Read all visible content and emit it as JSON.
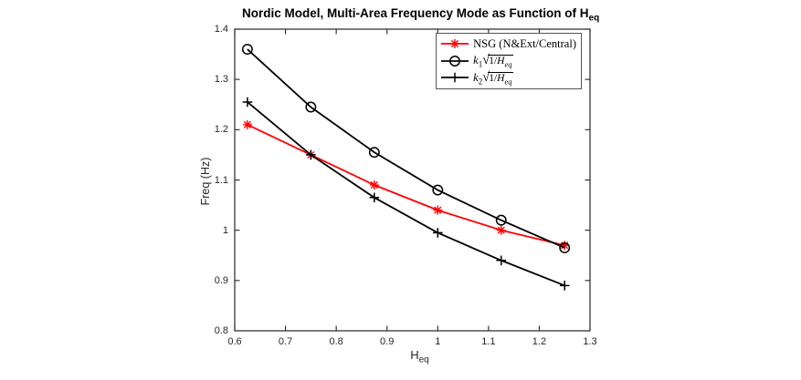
{
  "title": {
    "text": "Nordic Model, Multi-Area Frequency Mode as Function of H",
    "sub": "eq"
  },
  "axes": {
    "x_label": {
      "text": "H",
      "sub": "eq"
    },
    "y_label": "Freq (Hz)",
    "x_ticks": [
      "0.6",
      "0.7",
      "0.8",
      "0.9",
      "1",
      "1.1",
      "1.2",
      "1.3"
    ],
    "y_ticks": [
      "0.8",
      "0.9",
      "1",
      "1.1",
      "1.2",
      "1.3",
      "1.4"
    ]
  },
  "legend": {
    "items": [
      {
        "label": "NSG (N&Ext/Central)",
        "marker": "asterisk",
        "color": "#ff0000"
      },
      {
        "var": "k",
        "sub": "1",
        "sqrt_pre": "1/",
        "sqrt_var": "H",
        "sqrt_sub": "eq",
        "marker": "circle",
        "color": "#000000"
      },
      {
        "var": "k",
        "sub": "2",
        "sqrt_pre": "1/",
        "sqrt_var": "H",
        "sqrt_sub": "eq",
        "marker": "plus",
        "color": "#000000"
      }
    ]
  },
  "colors": {
    "nsg_red": "#ff0000",
    "series_black": "#000000",
    "axis_gray": "#262626"
  },
  "chart_data": {
    "type": "line",
    "title": "Nordic Model, Multi-Area Frequency Mode as Function of H_eq",
    "xlabel": "H_eq",
    "ylabel": "Freq (Hz)",
    "xlim": [
      0.6,
      1.3
    ],
    "ylim": [
      0.8,
      1.4
    ],
    "grid": false,
    "legend_position": "top-right-inside",
    "x": [
      0.625,
      0.75,
      0.875,
      1.0,
      1.125,
      1.25
    ],
    "series": [
      {
        "id": "nsg",
        "name": "NSG (N&Ext/Central)",
        "marker": "asterisk",
        "color": "#ff0000",
        "values": [
          1.21,
          1.15,
          1.09,
          1.04,
          1.0,
          0.97
        ]
      },
      {
        "id": "k1",
        "name": "k1*sqrt(1/Heq)",
        "marker": "circle",
        "color": "#000000",
        "values": [
          1.36,
          1.245,
          1.155,
          1.08,
          1.02,
          0.965
        ]
      },
      {
        "id": "k2",
        "name": "k2*sqrt(1/Heq)",
        "marker": "plus",
        "color": "#000000",
        "values": [
          1.255,
          1.15,
          1.065,
          0.995,
          0.94,
          0.89
        ]
      }
    ]
  }
}
